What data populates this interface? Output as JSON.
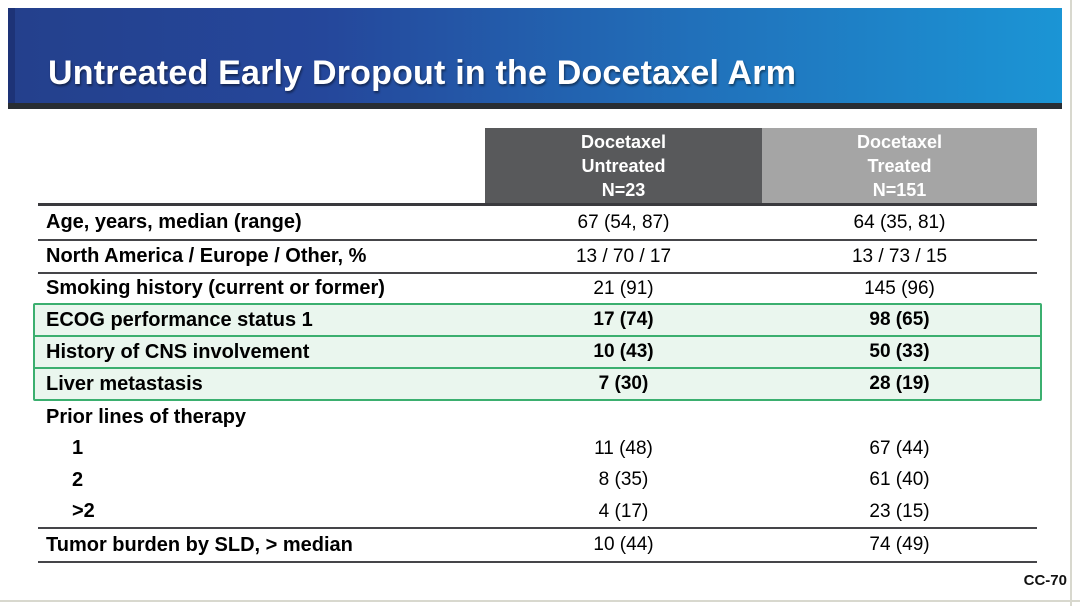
{
  "slide": {
    "title": "Untreated Early Dropout in the Docetaxel Arm",
    "footer": "CC-70"
  },
  "table": {
    "columns": [
      {
        "line1": "Docetaxel",
        "line2": "Untreated",
        "line3": "N=23"
      },
      {
        "line1": "Docetaxel",
        "line2": "Treated",
        "line3": "N=151"
      }
    ],
    "rows": [
      {
        "label": "Age, years, median (range)",
        "untreated": "67 (54, 87)",
        "treated": "64 (35, 81)"
      },
      {
        "label": "North America / Europe / Other, %",
        "untreated": "13 / 70 / 17",
        "treated": "13 / 73 / 15"
      },
      {
        "label": "Smoking history (current or former)",
        "untreated": "21 (91)",
        "treated": "145 (96)"
      },
      {
        "label": "ECOG performance status 1",
        "untreated": "17 (74)",
        "treated": "98 (65)",
        "highlighted": true
      },
      {
        "label": "History of CNS involvement",
        "untreated": "10 (43)",
        "treated": "50 (33)",
        "highlighted": true
      },
      {
        "label": "Liver metastasis",
        "untreated": "7 (30)",
        "treated": "28 (19)",
        "highlighted": true
      },
      {
        "label": "Prior lines of therapy",
        "untreated": "",
        "treated": ""
      },
      {
        "label": "1",
        "untreated": "11 (48)",
        "treated": "67 (44)",
        "indented": true
      },
      {
        "label": "2",
        "untreated": "8 (35)",
        "treated": "61 (40)",
        "indented": true
      },
      {
        "label": ">2",
        "untreated": "4 (17)",
        "treated": "23 (15)",
        "indented": true
      },
      {
        "label": "Tumor burden by SLD, > median",
        "untreated": "10 (44)",
        "treated": "74 (49)"
      }
    ]
  },
  "colors": {
    "title_gradient_start": "#24408C",
    "title_gradient_end": "#1B95D5",
    "title_underline": "#282D33",
    "header_untreated_bg": "#58595B",
    "header_treated_bg": "#A5A5A5",
    "highlight_border": "#3BAF6F",
    "highlight_fill": "#EAF6EE"
  }
}
